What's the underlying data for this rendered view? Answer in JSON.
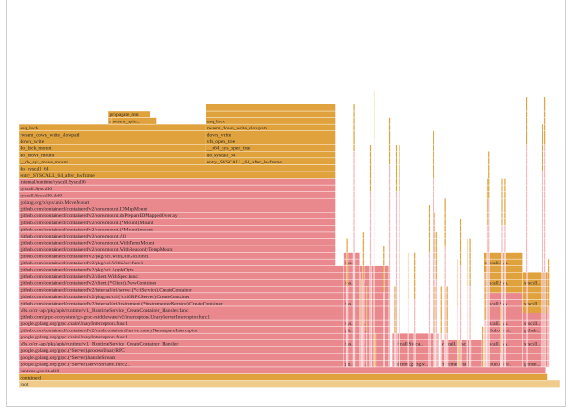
{
  "chart_data": {
    "type": "flamegraph",
    "root_label": "root",
    "colors": {
      "red": "#e9898d",
      "orange": "#e0a23c",
      "root": "#f0cc8c",
      "gap": "#f4b6b6",
      "border": "#ffffff"
    },
    "stacks": [
      {
        "start": 0,
        "width": 0.976,
        "frames": [
          {
            "label": "containerd",
            "c": "orange"
          }
        ]
      },
      {
        "start": 0,
        "width": 0.973,
        "frames": [
          {
            "label": "runtime.goexit.abi0",
            "c": "red"
          }
        ]
      },
      {
        "start": 0,
        "width": 0.684,
        "frames": [
          {
            "label": "google.golang.org/grpc.(*Server).serveStreams.func2.1",
            "c": "red"
          },
          {
            "label": "google.golang.org/grpc.(*Server).handleStream",
            "c": "red"
          },
          {
            "label": "google.golang.org/grpc.(*Server).processUnaryRPC",
            "c": "red"
          },
          {
            "label": "k8s.io/cri-api/pkg/apis/runtime/v1._RuntimeService_CreateContainer_Handler",
            "c": "red"
          },
          {
            "label": "google.golang.org/grpc.chainUnaryInterceptors.func1",
            "c": "red"
          },
          {
            "label": "github.com/containerd/containerd/v2/cmd/containerd/server.unaryNamespaceInterceptor",
            "c": "red"
          },
          {
            "label": "google.golang.org/grpc.chainUnaryInterceptors.func1",
            "c": "red"
          },
          {
            "label": "github.com/grpc-ecosystem/go-grpc-middleware/v2/interceptors.UnaryServerInterceptor.func1",
            "c": "red"
          },
          {
            "label": "k8s.io/cri-api/pkg/apis/runtime/v1._RuntimeService_CreateContainer_Handler.func1",
            "c": "red"
          },
          {
            "label": "github.com/containerd/containerd/v2/internal/cri/instrument.(*instrumentedService).CreateContainer",
            "c": "red"
          },
          {
            "label": "github.com/containerd/containerd/v2/plugins/cri/(*criGRPCServer).CreateContainer",
            "c": "red"
          },
          {
            "label": "github.com/containerd/containerd/v2/internal/cri/server.(*criService).CreateContainer",
            "c": "red"
          },
          {
            "label": "github.com/containerd/containerd/v2/client.(*Client).NewContainer",
            "c": "red"
          },
          {
            "label": "github.com/containerd/containerd/v2/client.WithSpec.func1",
            "c": "red"
          },
          {
            "label": "github.com/containerd/containerd/v2/pkg/oci.ApplyOpts",
            "c": "red"
          }
        ]
      },
      {
        "start": 0,
        "width": 0.585,
        "frames": [
          {
            "label": "github.com/containerd/containerd/v2/pkg/oci.WithUser.func1",
            "c": "red"
          },
          {
            "label": "github.com/containerd/containerd/v2/pkg/oci.WithUidGid.func1",
            "c": "red"
          },
          {
            "label": "github.com/containerd/containerd/v2/core/mount.WithReadonlyTempMount",
            "c": "red"
          },
          {
            "label": "github.com/containerd/containerd/v2/core/mount.WithTempMount",
            "c": "red"
          },
          {
            "label": "github.com/containerd/containerd/v2/core/mount.All",
            "c": "red"
          },
          {
            "label": "github.com/containerd/containerd/v2/core/mount.(*Mount).mount",
            "c": "red"
          },
          {
            "label": "github.com/containerd/containerd/v2/core/mount.(*Mount).Mount",
            "c": "red"
          },
          {
            "label": "github.com/containerd/containerd/v2/core/mount.doPrepareIDMappedOverlay",
            "c": "red"
          },
          {
            "label": "github.com/containerd/containerd/v2/core/mount.IDMapMount",
            "c": "red"
          },
          {
            "label": "golang.org/x/sys/unix.MoveMount",
            "c": "red"
          },
          {
            "label": "syscall.Syscall6.abi0",
            "c": "red"
          },
          {
            "label": "syscall.Syscall6",
            "c": "red"
          },
          {
            "label": "internal/runtime/syscall.Syscall6",
            "c": "red"
          },
          {
            "label": "entry_SYSCALL_64_after_hwframe",
            "c": "orange"
          },
          {
            "label": "do_syscall_64",
            "c": "orange"
          },
          {
            "label": "__do_sys_move_mount",
            "c": "orange"
          },
          {
            "label": "do_move_mount",
            "c": "orange"
          },
          {
            "label": "do_lock_mount",
            "c": "orange"
          },
          {
            "label": "down_write",
            "c": "orange"
          },
          {
            "label": "rwsem_down_write_slowpath",
            "c": "orange"
          },
          {
            "label": "osq_lock",
            "c": "orange"
          }
        ]
      }
    ]
  }
}
